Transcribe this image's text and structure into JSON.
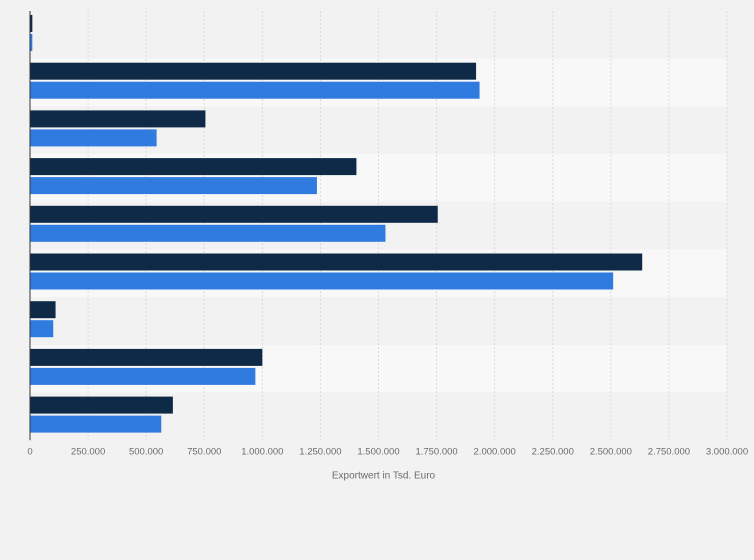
{
  "chart_data": {
    "type": "bar",
    "orientation": "horizontal",
    "title": "",
    "xlabel": "Exportwert in Tsd. Euro",
    "ylabel": "",
    "xlim": [
      0,
      3000000
    ],
    "x_ticks": [
      0,
      250000,
      500000,
      750000,
      1000000,
      1250000,
      1500000,
      1750000,
      2000000,
      2250000,
      2500000,
      2750000,
      3000000
    ],
    "x_tick_labels": [
      "0",
      "250.000",
      "500.000",
      "750.000",
      "1.000.000",
      "1.250.000",
      "1.500.000",
      "1.750.000",
      "2.000.000",
      "2.250.000",
      "2.500.000",
      "2.750.000",
      "3.000.000"
    ],
    "categories": [
      "",
      "",
      "",
      "",
      "",
      "",
      "",
      "",
      ""
    ],
    "series": [
      {
        "color": "#0f2a47",
        "values": [
          10000,
          1920000,
          755000,
          1405000,
          1755000,
          2635000,
          110000,
          1000000,
          615000
        ]
      },
      {
        "color": "#2f7be0",
        "values": [
          10000,
          1935000,
          545000,
          1235000,
          1530000,
          2510000,
          100000,
          970000,
          565000
        ]
      }
    ],
    "grid": "vertical",
    "legend": "none"
  }
}
